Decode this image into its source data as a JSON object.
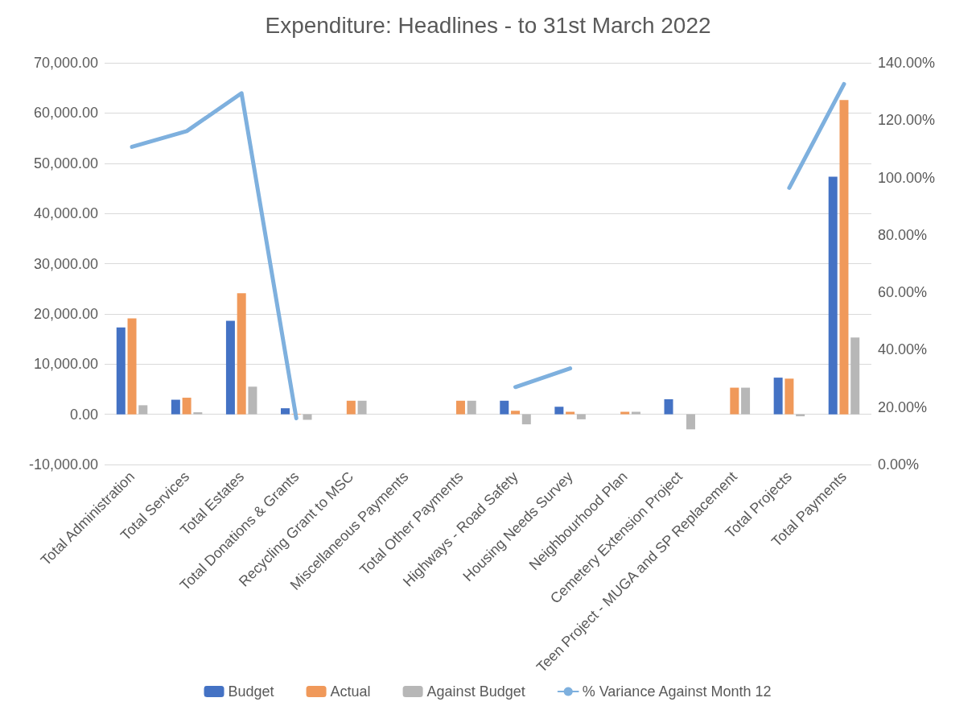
{
  "chart_data": {
    "type": "bar",
    "title": "Expenditure: Headlines - to 31st March 2022",
    "categories": [
      "Total Administration",
      "Total Services",
      "Total Estates",
      "Total Donations & Grants",
      "Recycling Grant to MSC",
      "Miscellaneous Payments",
      "Total Other Payments",
      "Highways - Road Safety",
      "Housing Needs Survey",
      "Neighbourhood Plan",
      "Cemetery Extension Project",
      "Teen Project - MUGA and SP Replacement",
      "Total Projects",
      "Total Payments"
    ],
    "series": [
      {
        "name": "Budget",
        "color": "#4472c4",
        "values": [
          17300,
          2900,
          18600,
          1200,
          0,
          0,
          0,
          2700,
          1500,
          0,
          3000,
          0,
          7300,
          47300
        ]
      },
      {
        "name": "Actual",
        "color": "#f0995a",
        "values": [
          19100,
          3300,
          24100,
          100,
          2700,
          0,
          2700,
          700,
          500,
          500,
          0,
          5300,
          7100,
          62600
        ]
      },
      {
        "name": "Against Budget",
        "color": "#b7b7b7",
        "values": [
          1800,
          400,
          5500,
          -1100,
          2700,
          0,
          2700,
          -2000,
          -1000,
          500,
          -3000,
          5300,
          -400,
          15300
        ]
      },
      {
        "name": "% Variance Against Month 12",
        "type": "line",
        "axis": "y2",
        "color": "#7eb0de",
        "values": [
          110.7,
          116.2,
          129.4,
          16.1,
          null,
          null,
          null,
          27,
          33.5,
          null,
          null,
          null,
          96.4,
          132.6
        ]
      }
    ],
    "ylim": [
      -10000,
      70000
    ],
    "yticks": [
      {
        "value": -10000,
        "label": "-10,000.00"
      },
      {
        "value": 0,
        "label": "0.00"
      },
      {
        "value": 10000,
        "label": "10,000.00"
      },
      {
        "value": 20000,
        "label": "20,000.00"
      },
      {
        "value": 30000,
        "label": "30,000.00"
      },
      {
        "value": 40000,
        "label": "40,000.00"
      },
      {
        "value": 50000,
        "label": "50,000.00"
      },
      {
        "value": 60000,
        "label": "60,000.00"
      },
      {
        "value": 70000,
        "label": "70,000.00"
      }
    ],
    "y2lim": [
      0,
      140
    ],
    "y2ticks": [
      {
        "value": 0,
        "label": "0.00%"
      },
      {
        "value": 20,
        "label": "20.00%"
      },
      {
        "value": 40,
        "label": "40.00%"
      },
      {
        "value": 60,
        "label": "60.00%"
      },
      {
        "value": 80,
        "label": "80.00%"
      },
      {
        "value": 100,
        "label": "100.00%"
      },
      {
        "value": 120,
        "label": "120.00%"
      },
      {
        "value": 140,
        "label": "140.00%"
      }
    ],
    "grid": "y",
    "legend": "bottom",
    "marker": "none",
    "line_style": "solid"
  }
}
